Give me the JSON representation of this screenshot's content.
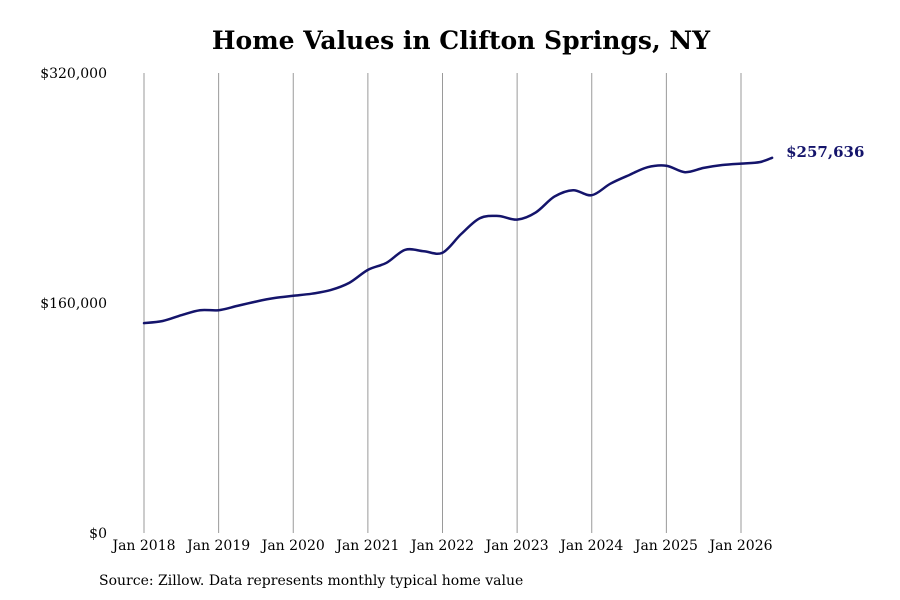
{
  "colors": {
    "line": "#14146b",
    "grid": "#9a9a9a",
    "label": "#14146b"
  },
  "source_note": "Source: Zillow. Data represents monthly typical home value",
  "chart_data": {
    "type": "line",
    "title": "Home Values in Clifton Springs, NY",
    "xlabel": "",
    "ylabel": "",
    "ylim": [
      0,
      320000
    ],
    "y_ticks": [
      {
        "value": 0,
        "label": "$0"
      },
      {
        "value": 160000,
        "label": "$160,000"
      },
      {
        "value": 320000,
        "label": "$320,000"
      }
    ],
    "x_ticks": [
      "Jan 2018",
      "Jan 2019",
      "Jan 2020",
      "Jan 2021",
      "Jan 2022",
      "Jan 2023",
      "Jan 2024",
      "Jan 2025",
      "Jan 2026"
    ],
    "x_range": [
      "2018-01",
      "2026-06"
    ],
    "grid": {
      "vertical": true,
      "horizontal": false
    },
    "end_label": "$257,636",
    "series": [
      {
        "x": [
          "2018-01",
          "2018-04",
          "2018-07",
          "2018-10",
          "2019-01",
          "2019-04",
          "2019-07",
          "2019-10",
          "2020-01",
          "2020-04",
          "2020-07",
          "2020-10",
          "2021-01",
          "2021-04",
          "2021-07",
          "2021-10",
          "2022-01",
          "2022-04",
          "2022-07",
          "2022-10",
          "2023-01",
          "2023-04",
          "2023-07",
          "2023-10",
          "2024-01",
          "2024-04",
          "2024-07",
          "2024-10",
          "2025-01",
          "2025-04",
          "2025-07",
          "2025-10",
          "2026-01",
          "2026-04",
          "2026-06"
        ],
        "values": [
          146000,
          147500,
          151500,
          155000,
          155000,
          158000,
          161000,
          163500,
          165000,
          166500,
          169000,
          174000,
          183000,
          188000,
          197000,
          196000,
          195000,
          208000,
          219000,
          220500,
          218000,
          223000,
          234000,
          238500,
          235000,
          243000,
          249000,
          254500,
          255500,
          251000,
          254000,
          256000,
          257000,
          258000,
          261000
        ]
      }
    ]
  }
}
